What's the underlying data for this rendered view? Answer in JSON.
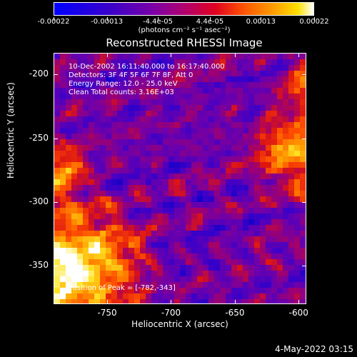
{
  "colorbar": {
    "tick_labels": [
      "-0.00022",
      "-0.00013",
      "-4.4e-05",
      "4.4e-05",
      "0.00013",
      "0.00022"
    ],
    "tick_values": [
      -0.00022,
      -0.00013,
      -4.4e-05,
      4.4e-05,
      0.00013,
      0.00022
    ],
    "range": [
      -0.00022,
      0.00022
    ],
    "units": "(photons cm⁻² s⁻¹ asec⁻²)"
  },
  "title": "Reconstructed RHESSI Image",
  "overlay": {
    "time_range": "10-Dec-2002 16:11:40.000 to 16:17:40.000",
    "detectors": "Detectors: 3F 4F 5F 6F 7F 8F, Att 0",
    "energy": "Energy Range: 12.0 - 25.0 keV",
    "method": "Clean     Total counts: 3.16E+03",
    "peak": "Position of Peak = [-782,-343]"
  },
  "axes": {
    "x_label": "Heliocentric X (arcsec)",
    "y_label": "Heliocentric Y (arcsec)",
    "x_range": [
      -792,
      -594
    ],
    "y_range": [
      -380,
      -183
    ],
    "x_ticks": [
      -750,
      -700,
      -650,
      -600
    ],
    "x_tick_labels": [
      "-750",
      "-700",
      "-650",
      "-600"
    ],
    "y_ticks": [
      -200,
      -250,
      -300,
      -350
    ],
    "y_tick_labels": [
      "-200",
      "-250",
      "-300",
      "-350"
    ]
  },
  "footer": "4-May-2022 03:15"
}
